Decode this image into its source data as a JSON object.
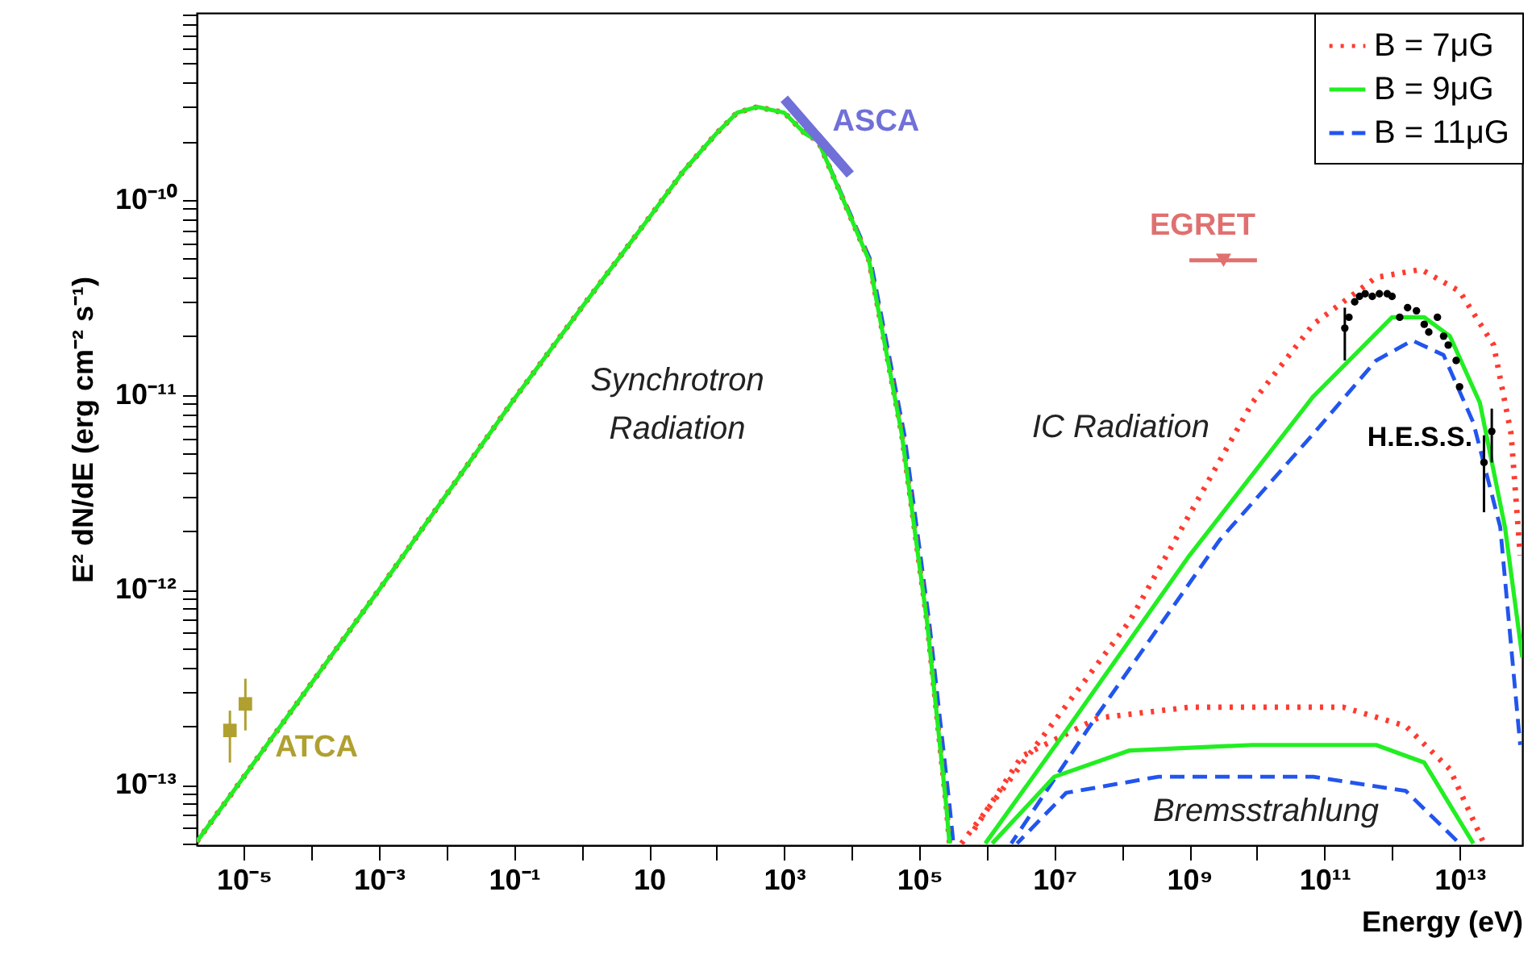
{
  "chart_data": {
    "type": "line",
    "xlabel": "Energy (eV)",
    "ylabel": "E² dN/dE (erg cm⁻² s⁻¹)",
    "log": "xy",
    "grid": false,
    "legend": "top right",
    "xlim": [
      2e-06,
      85000000000000.0
    ],
    "ylim": [
      4.9e-14,
      9.1e-10
    ],
    "xticks": [
      {
        "value": 1e-05,
        "label": "10⁻⁵"
      },
      {
        "value": 0.0001,
        "label": null
      },
      {
        "value": 0.001,
        "label": "10⁻³"
      },
      {
        "value": 0.01,
        "label": null
      },
      {
        "value": 0.1,
        "label": "10⁻¹"
      },
      {
        "value": 1,
        "label": null
      },
      10,
      {
        "value": 100,
        "label": null
      },
      {
        "value": 1000.0,
        "label": "10³"
      },
      {
        "value": 10000.0,
        "label": null
      },
      {
        "value": 100000.0,
        "label": "10⁵"
      },
      {
        "value": 1000000.0,
        "label": null
      },
      {
        "value": 10000000.0,
        "label": "10⁷"
      },
      {
        "value": 100000000.0,
        "label": null
      },
      {
        "value": 1000000000.0,
        "label": "10⁹"
      },
      {
        "value": 10000000000.0,
        "label": null
      },
      {
        "value": 100000000000.0,
        "label": "10¹¹"
      },
      {
        "value": 1000000000000.0,
        "label": null
      },
      {
        "value": 10000000000000.0,
        "label": "10¹³"
      }
    ],
    "yticks": [
      {
        "value": 5e-14,
        "label": null
      },
      {
        "value": 6e-14,
        "label": null
      },
      {
        "value": 7e-14,
        "label": null
      },
      {
        "value": 8e-14,
        "label": null
      },
      {
        "value": 9e-14,
        "label": null
      },
      {
        "value": 1e-13,
        "label": "10⁻¹³"
      },
      {
        "value": 2e-13,
        "label": null
      },
      {
        "value": 3e-13,
        "label": null
      },
      {
        "value": 4e-13,
        "label": null
      },
      {
        "value": 5e-13,
        "label": null
      },
      {
        "value": 6e-13,
        "label": null
      },
      {
        "value": 7e-13,
        "label": null
      },
      {
        "value": 8e-13,
        "label": null
      },
      {
        "value": 9e-13,
        "label": null
      },
      {
        "value": 1e-12,
        "label": "10⁻¹²"
      },
      {
        "value": 2e-12,
        "label": null
      },
      {
        "value": 3e-12,
        "label": null
      },
      {
        "value": 4e-12,
        "label": null
      },
      {
        "value": 5e-12,
        "label": null
      },
      {
        "value": 6e-12,
        "label": null
      },
      {
        "value": 7e-12,
        "label": null
      },
      {
        "value": 8e-12,
        "label": null
      },
      {
        "value": 9e-12,
        "label": null
      },
      {
        "value": 1e-11,
        "label": "10⁻¹¹"
      },
      {
        "value": 2e-11,
        "label": null
      },
      {
        "value": 3e-11,
        "label": null
      },
      {
        "value": 4e-11,
        "label": null
      },
      {
        "value": 5e-11,
        "label": null
      },
      {
        "value": 6e-11,
        "label": null
      },
      {
        "value": 7e-11,
        "label": null
      },
      {
        "value": 8e-11,
        "label": null
      },
      {
        "value": 9e-11,
        "label": null
      },
      {
        "value": 1e-10,
        "label": "10⁻¹⁰"
      },
      {
        "value": 2e-10,
        "label": null
      },
      {
        "value": 3e-10,
        "label": null
      },
      {
        "value": 4e-10,
        "label": null
      },
      {
        "value": 5e-10,
        "label": null
      },
      {
        "value": 6e-10,
        "label": null
      },
      {
        "value": 7e-10,
        "label": null
      },
      {
        "value": 8e-10,
        "label": null
      },
      {
        "value": 9e-10,
        "label": null
      }
    ],
    "series": [
      {
        "name": "B = 7μG",
        "color": "#ff3b2f",
        "line_style": "dotted",
        "x": [
          2e-06,
          1e-05,
          0.001,
          0.1,
          1,
          10,
          32,
          100,
          200,
          400,
          1000,
          2000,
          3200,
          18000,
          55000,
          130000,
          250000,
          280000
        ],
        "values": [
          5.1e-14,
          1.1e-13,
          1e-12,
          9.5e-12,
          2.8e-11,
          8.1e-11,
          1.4e-10,
          2.2e-10,
          2.8e-10,
          3e-10,
          2.8e-10,
          2.2e-10,
          2e-10,
          4.9e-11,
          6.3e-12,
          6.9e-13,
          7.9e-14,
          5e-14
        ]
      },
      {
        "name": "B = 9μG",
        "color": "#22ee22",
        "line_style": "solid",
        "x": [
          2e-06,
          1e-05,
          0.001,
          0.1,
          1,
          10,
          32,
          100,
          200,
          400,
          1000,
          2000,
          3200,
          18000,
          55000,
          130000,
          250000,
          280000
        ],
        "values": [
          5.1e-14,
          1.1e-13,
          1e-12,
          9.5e-12,
          2.8e-11,
          8.1e-11,
          1.4e-10,
          2.2e-10,
          2.8e-10,
          3e-10,
          2.8e-10,
          2.2e-10,
          2e-10,
          4.9e-11,
          6.3e-12,
          6.9e-13,
          7.9e-14,
          5e-14
        ]
      },
      {
        "name": "B = 11μG",
        "color": "#2255ee",
        "line_style": "dashed",
        "x": [
          2000,
          3200,
          19000,
          60000,
          140000,
          280000,
          320000
        ],
        "values": [
          2.2e-10,
          2e-10,
          4.9e-11,
          6.3e-12,
          6.9e-13,
          7.9e-14,
          5e-14
        ]
      },
      {
        "color": "#ff3b2f",
        "line_style": "dotted",
        "x": [
          420000.0,
          7900000.0,
          130000000.0,
          8500000000.0,
          68000000000.0,
          580000000000.0,
          2700000000000.0,
          10000000000000.0,
          32000000000000.0,
          58000000000000.0,
          79000000000000.0
        ],
        "values": [
          5e-14,
          1.9e-13,
          6.9e-13,
          9.1e-12,
          2.3e-11,
          4e-11,
          4.4e-11,
          3.4e-11,
          1.8e-11,
          6.3e-12,
          1.5e-12
        ]
      },
      {
        "color": "#22ee22",
        "line_style": "solid",
        "x": [
          950000.0,
          15000000.0,
          1000000000.0,
          68000000000.0,
          1000000000000.0,
          3000000000000.0,
          7200000000000.0,
          20000000000000.0,
          47000000000000.0,
          85000000000000.0
        ],
        "values": [
          5e-14,
          1.9e-13,
          1.5e-12,
          9.8e-12,
          2.5e-11,
          2.5e-11,
          2e-11,
          9.1e-12,
          2.1e-12,
          4.5e-13
        ]
      },
      {
        "color": "#2255ee",
        "line_style": "dashed",
        "x": [
          2300000.0,
          44000000.0,
          2800000000.0,
          68000000000.0,
          580000000000.0,
          2000000000000.0,
          5800000000000.0,
          16000000000000.0,
          40000000000000.0,
          79000000000000.0
        ],
        "values": [
          5e-14,
          2.3e-13,
          1.8e-12,
          6.3e-12,
          1.5e-11,
          1.9e-11,
          1.6e-11,
          7.2e-12,
          2.1e-12,
          1.6e-13
        ]
      },
      {
        "color": "#ff3b2f",
        "line_style": "dotted",
        "x": [
          650000.0,
          3300000.0,
          44000000.0,
          1000000000.0,
          190000000000.0,
          1600000000000.0,
          7200000000000.0,
          23000000000000.0
        ],
        "values": [
          5.9e-14,
          1.4e-13,
          2.2e-13,
          2.5e-13,
          2.5e-13,
          2e-13,
          1.2e-13,
          5e-14
        ]
      },
      {
        "color": "#22ee22",
        "line_style": "solid",
        "x": [
          1200000.0,
          10000000.0,
          130000000.0,
          8500000000.0,
          580000000000.0,
          3000000000000.0,
          16000000000000.0
        ],
        "values": [
          5e-14,
          1.1e-13,
          1.5e-13,
          1.6e-13,
          1.6e-13,
          1.3e-13,
          5e-14
        ]
      },
      {
        "color": "#2255ee",
        "line_style": "dashed",
        "x": [
          2800000.0,
          15000000.0,
          350000000.0,
          68000000000.0,
          1600000000000.0,
          10000000000000.0
        ],
        "values": [
          5e-14,
          9.1e-14,
          1.1e-13,
          1.1e-13,
          9.3e-14,
          5e-14
        ]
      },
      {
        "name": "ASCA",
        "color": "#7070d8",
        "line_style": "solid",
        "x": [
          1000,
          9500
        ],
        "values": [
          3.3e-10,
          1.35e-10
        ]
      },
      {
        "name": "ATCA",
        "type": "scatter",
        "marker": "square",
        "color": "#b0a030",
        "x": [
          6.2e-06,
          1.05e-05
        ],
        "values": [
          1.9e-13,
          2.6e-13
        ],
        "errors": [
          [
            1.3e-13,
            2.4e-13
          ],
          [
            1.9e-13,
            3.5e-13
          ]
        ]
      },
      {
        "name": "EGRET",
        "type": "scatter",
        "marker": "triangle",
        "color": "#e07070",
        "x": [
          3200000000.0
        ],
        "values": [
          4.9e-11
        ],
        "xerrors": [
          [
            1000000000.0,
            10000000000.0
          ]
        ]
      },
      {
        "name": "H.E.S.S.",
        "type": "scatter",
        "marker": "circle",
        "color": "#000000",
        "x": [
          200000000000.0,
          230000000000.0,
          280000000000.0,
          330000000000.0,
          400000000000.0,
          510000000000.0,
          650000000000.0,
          850000000000.0,
          1000000000000.0,
          1300000000000.0,
          1700000000000.0,
          2300000000000.0,
          3000000000000.0,
          3500000000000.0,
          4700000000000.0,
          5800000000000.0,
          6800000000000.0,
          8900000000000.0,
          10000000000000.0,
          23000000000000.0,
          30000000000000.0
        ],
        "values": [
          2.2e-11,
          2.5e-11,
          3e-11,
          3.2e-11,
          3.3e-11,
          3.2e-11,
          3.3e-11,
          3.3e-11,
          3.2e-11,
          2.5e-11,
          2.8e-11,
          2.7e-11,
          2.3e-11,
          2.1e-11,
          2.5e-11,
          2e-11,
          1.8e-11,
          1.5e-11,
          1.1e-11,
          4.5e-12,
          6.5e-12
        ],
        "errors": [
          [
            1.5e-11,
            2.8e-11
          ],
          null,
          null,
          null,
          null,
          null,
          null,
          null,
          null,
          null,
          null,
          null,
          null,
          null,
          null,
          null,
          null,
          null,
          null,
          [
            2.5e-12,
            6.2e-12
          ],
          [
            4.5e-12,
            8.5e-12
          ]
        ]
      }
    ],
    "annotations": [
      "Synchrotron\nRadiation",
      "IC Radiation",
      "Bremsstrahlung"
    ]
  }
}
